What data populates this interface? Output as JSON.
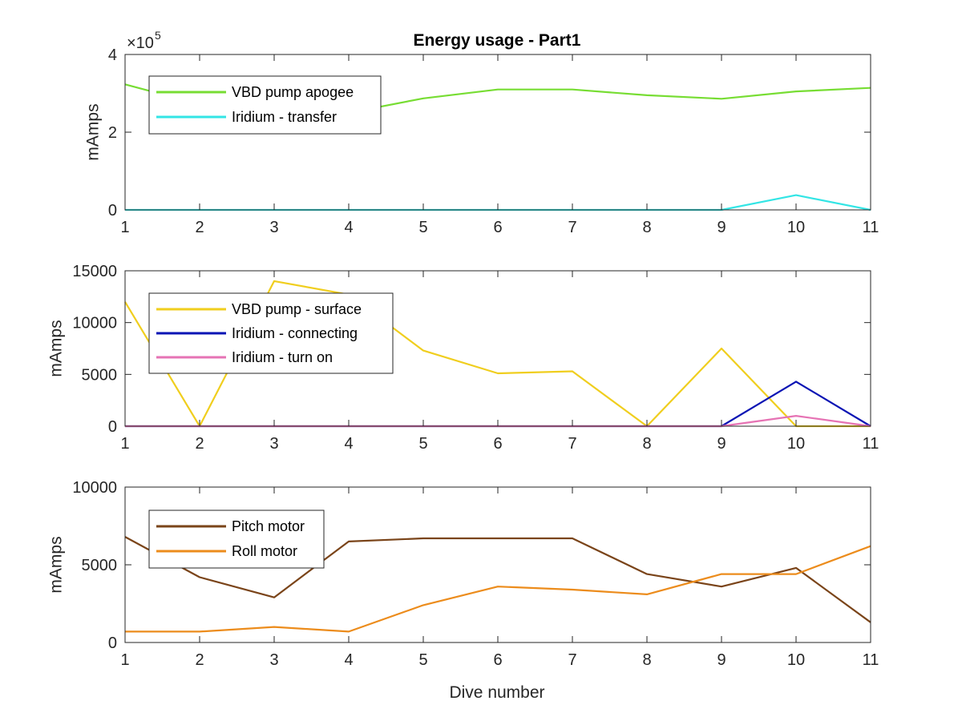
{
  "figure": {
    "title": "Energy usage - Part1",
    "xlabel": "Dive number"
  },
  "chart_data": [
    {
      "type": "line",
      "title": "Energy usage - Part1",
      "xlabel": "",
      "ylabel": "mAmps",
      "y_exponent": "5",
      "xlim": [
        1,
        11
      ],
      "ylim": [
        0,
        400000
      ],
      "x": [
        1,
        2,
        3,
        4,
        5,
        6,
        7,
        8,
        9,
        10,
        11
      ],
      "yticks": [
        0,
        200000,
        400000
      ],
      "ytick_labels": [
        "0",
        "2",
        "4"
      ],
      "legend_position": "top-left",
      "series": [
        {
          "name": "VBD pump apogee",
          "color": "#77DD33",
          "values": [
            323000,
            272000,
            258000,
            250000,
            287000,
            310000,
            310000,
            295000,
            286000,
            305000,
            314000
          ]
        },
        {
          "name": "Iridium - transfer",
          "color": "#33E5E5",
          "values": [
            0,
            0,
            0,
            0,
            0,
            0,
            0,
            0,
            0,
            38000,
            0
          ]
        }
      ]
    },
    {
      "type": "line",
      "title": "",
      "xlabel": "",
      "ylabel": "mAmps",
      "xlim": [
        1,
        11
      ],
      "ylim": [
        0,
        15000
      ],
      "x": [
        1,
        2,
        3,
        4,
        5,
        6,
        7,
        8,
        9,
        10,
        11
      ],
      "yticks": [
        0,
        5000,
        10000,
        15000
      ],
      "ytick_labels": [
        "0",
        "5000",
        "10000",
        "15000"
      ],
      "legend_position": "top-left",
      "series": [
        {
          "name": "VBD pump - surface",
          "color": "#F0CE1E",
          "values": [
            12000,
            0,
            14000,
            12700,
            7300,
            5100,
            5300,
            0,
            7500,
            0,
            0
          ]
        },
        {
          "name": "Iridium - connecting",
          "color": "#0A14B4",
          "values": [
            0,
            0,
            0,
            0,
            0,
            0,
            0,
            0,
            0,
            4300,
            0
          ]
        },
        {
          "name": "Iridium - turn on",
          "color": "#E673B4",
          "values": [
            0,
            0,
            0,
            0,
            0,
            0,
            0,
            0,
            0,
            1000,
            0
          ]
        }
      ]
    },
    {
      "type": "line",
      "title": "",
      "xlabel": "Dive number",
      "ylabel": "mAmps",
      "xlim": [
        1,
        11
      ],
      "ylim": [
        0,
        10000
      ],
      "x": [
        1,
        2,
        3,
        4,
        5,
        6,
        7,
        8,
        9,
        10,
        11
      ],
      "yticks": [
        0,
        5000,
        10000
      ],
      "ytick_labels": [
        "0",
        "5000",
        "10000"
      ],
      "legend_position": "top-left",
      "series": [
        {
          "name": "Pitch motor",
          "color": "#7A4419",
          "values": [
            6800,
            4200,
            2900,
            6500,
            6700,
            6700,
            6700,
            4400,
            3600,
            4800,
            1300
          ]
        },
        {
          "name": "Roll motor",
          "color": "#EC8C1C",
          "values": [
            700,
            700,
            1000,
            700,
            2400,
            3600,
            3400,
            3100,
            4400,
            4400,
            6200
          ]
        }
      ]
    }
  ]
}
